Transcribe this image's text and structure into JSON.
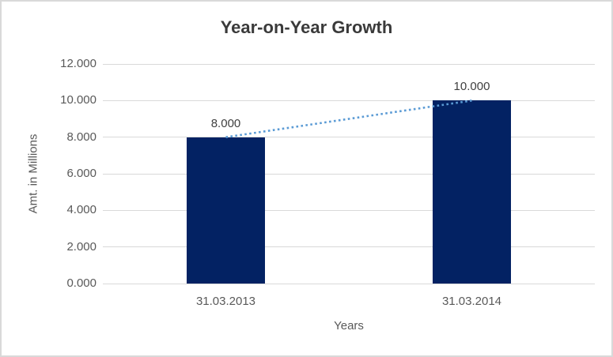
{
  "window": {
    "background": "#ffffff",
    "border_color": "#d9d9d9"
  },
  "chart_data": {
    "type": "bar",
    "title": "Year-on-Year Growth",
    "categories": [
      "31.03.2013",
      "31.03.2014"
    ],
    "values": [
      8,
      10
    ],
    "value_labels": [
      "8.000",
      "10.000"
    ],
    "xlabel": "Years",
    "ylabel": "Amt. in Millions",
    "ylim": [
      0,
      12
    ],
    "ytick_labels": [
      "0.000",
      "2.000",
      "4.000",
      "6.000",
      "8.000",
      "10.000",
      "12.000"
    ],
    "grid": true,
    "legend": "none",
    "bar_color": "#032263",
    "gridline_color": "#d9d9d9",
    "tick_text_color": "#595959",
    "title_color": "#3a3a3a",
    "data_label_color": "#404040",
    "trendline": {
      "style": "dotted",
      "color": "#5B9BD5",
      "from_value": 8,
      "to_value": 10
    }
  }
}
